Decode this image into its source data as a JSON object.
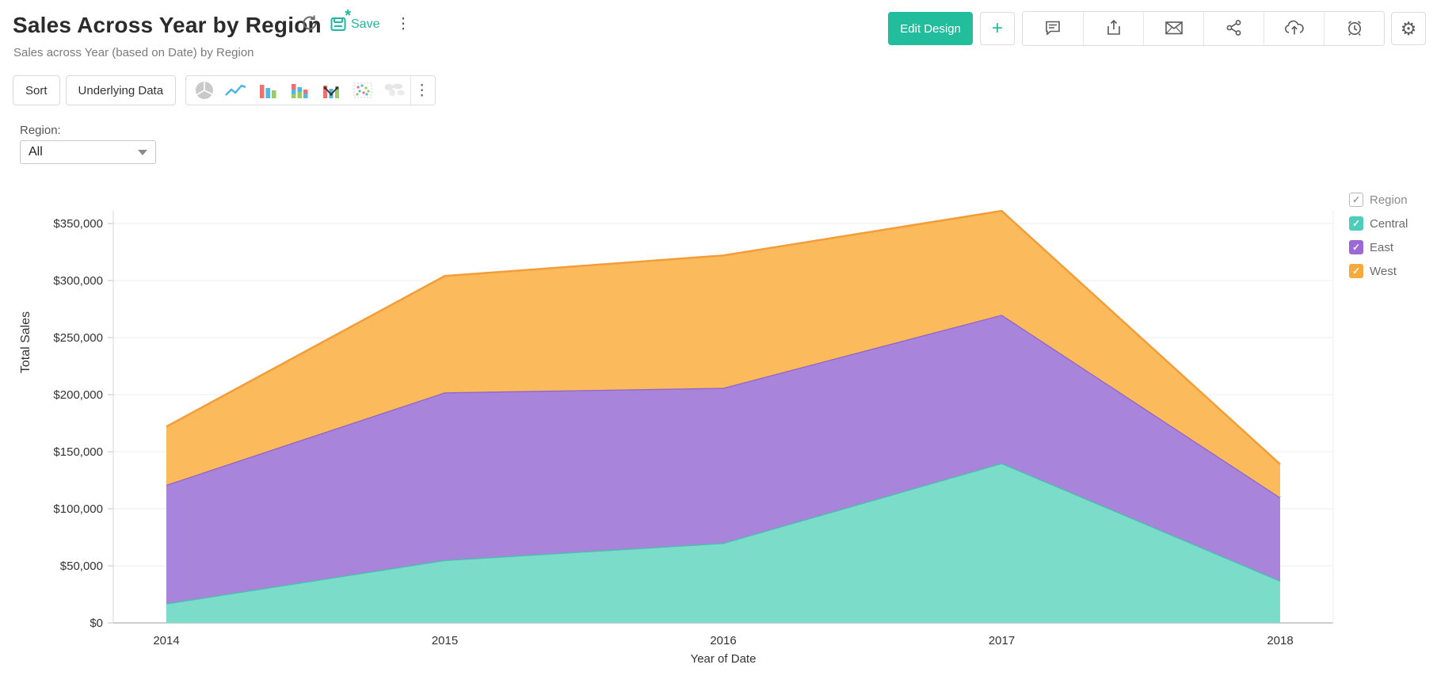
{
  "header": {
    "title": "Sales Across Year by Region",
    "subtitle": "Sales across Year (based on Date) by Region",
    "save_label": "Save",
    "unsaved_marker": "*",
    "edit_design_label": "Edit Design",
    "plus_label": "+",
    "gear_glyph": "⚙",
    "kebab_glyph": "⋮",
    "accent_color": "#21bd9c",
    "action_icons": [
      "comment-icon",
      "export-icon",
      "email-icon",
      "share-icon",
      "cloud-upload-icon",
      "alarm-icon",
      "gear-icon"
    ]
  },
  "toolbar": {
    "sort_label": "Sort",
    "underlying_data_label": "Underlying Data",
    "chart_types": [
      "pie",
      "line",
      "bar",
      "stacked-bar",
      "bar-line-combo",
      "scatter",
      "map"
    ],
    "kebab_glyph": "⋮"
  },
  "filter": {
    "label": "Region:",
    "value": "All"
  },
  "legend": {
    "title": "Region",
    "items": [
      {
        "label": "Central",
        "color": "#4fccba"
      },
      {
        "label": "East",
        "color": "#9c68d3"
      },
      {
        "label": "West",
        "color": "#f6a93c"
      }
    ]
  },
  "chart_data": {
    "type": "area",
    "stacked": true,
    "x": [
      "2014",
      "2015",
      "2016",
      "2017",
      "2018"
    ],
    "series": [
      {
        "name": "Central",
        "values": [
          17000,
          55000,
          70000,
          140000,
          37000
        ],
        "fill": "#7cdcca",
        "line": "#45c1ae"
      },
      {
        "name": "East",
        "values": [
          104000,
          147000,
          136000,
          130000,
          73000
        ],
        "fill": "#a884da",
        "line": "#8f63cd"
      },
      {
        "name": "West",
        "values": [
          51000,
          102000,
          116000,
          91000,
          29000
        ],
        "fill": "#fbbb5c",
        "line": "#f29d38"
      }
    ],
    "cumulative_totals": {
      "2014": [
        17000,
        121000,
        172000
      ],
      "2015": [
        55000,
        202000,
        304000
      ],
      "2016": [
        70000,
        206000,
        322000
      ],
      "2017": [
        140000,
        270000,
        361000
      ],
      "2018": [
        37000,
        110000,
        139000
      ]
    },
    "xlabel": "Year of Date",
    "ylabel": "Total Sales",
    "ylim": [
      0,
      375000
    ],
    "ytick_values": [
      0,
      50000,
      100000,
      150000,
      200000,
      250000,
      300000,
      350000
    ],
    "ytick_labels": [
      "$0",
      "$50,000",
      "$100,000",
      "$150,000",
      "$200,000",
      "$250,000",
      "$300,000",
      "$350,000"
    ],
    "grid": true,
    "legend_position": "right"
  }
}
